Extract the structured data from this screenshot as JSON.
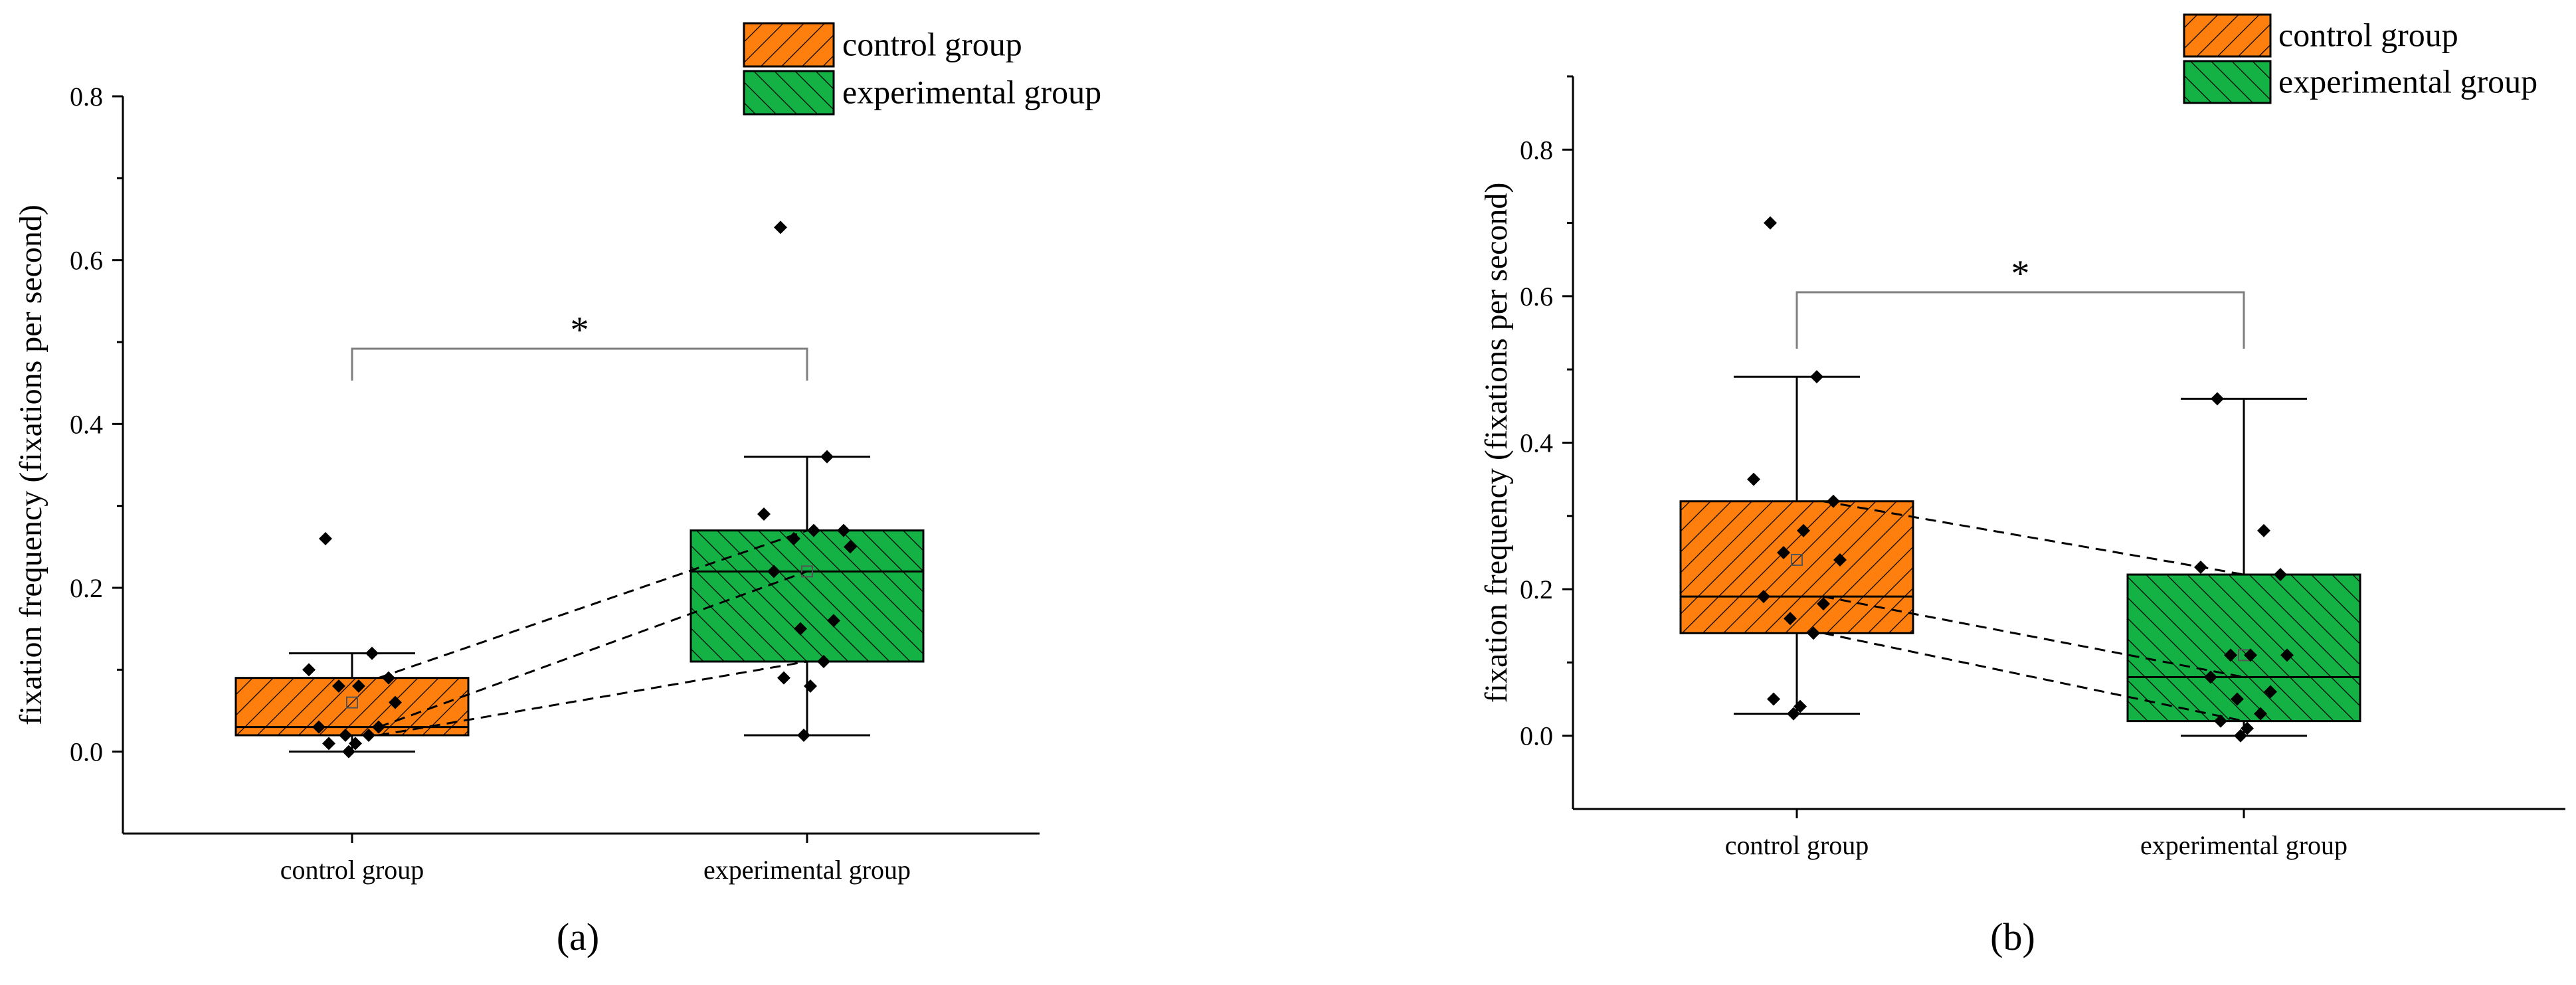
{
  "colors": {
    "control": "#ff7f0e",
    "experimental": "#14b245",
    "axis": "#000000",
    "bracket": "#7f7f7f"
  },
  "chart_data": [
    {
      "type": "box",
      "panel_label": "(a)",
      "ylabel": "fixation frequency (fixations per second)",
      "ylim": [
        -0.1,
        0.8
      ],
      "yticks": [
        "0.0",
        "0.2",
        "0.4",
        "0.6",
        "0.8"
      ],
      "categories": [
        "control group",
        "experimental group"
      ],
      "legend": [
        "control group",
        "experimental group"
      ],
      "significance": "*",
      "boxes": [
        {
          "name": "control group",
          "whisker_low": 0.0,
          "q1": 0.02,
          "median": 0.03,
          "q3": 0.09,
          "whisker_high": 0.12,
          "mean": 0.06,
          "points": [
            0.26,
            0.12,
            0.1,
            0.09,
            0.08,
            0.08,
            0.06,
            0.03,
            0.03,
            0.02,
            0.02,
            0.01,
            0.01,
            0.0
          ]
        },
        {
          "name": "experimental group",
          "whisker_low": 0.02,
          "q1": 0.11,
          "median": 0.22,
          "q3": 0.27,
          "whisker_high": 0.36,
          "mean": 0.22,
          "points": [
            0.64,
            0.36,
            0.29,
            0.27,
            0.27,
            0.26,
            0.25,
            0.22,
            0.16,
            0.15,
            0.11,
            0.09,
            0.08,
            0.02
          ]
        }
      ],
      "paired_lines": [
        [
          0.09,
          0.27
        ],
        [
          0.03,
          0.22
        ],
        [
          0.02,
          0.11
        ]
      ]
    },
    {
      "type": "box",
      "panel_label": "(b)",
      "ylabel": "fixation frequency (fixations per second)",
      "ylim": [
        -0.1,
        0.9
      ],
      "yticks": [
        "0.0",
        "0.2",
        "0.4",
        "0.6",
        "0.8"
      ],
      "categories": [
        "control group",
        "experimental group"
      ],
      "legend": [
        "control group",
        "experimental group"
      ],
      "significance": "*",
      "boxes": [
        {
          "name": "control group",
          "whisker_low": 0.03,
          "q1": 0.14,
          "median": 0.19,
          "q3": 0.32,
          "whisker_high": 0.49,
          "mean": 0.24,
          "points": [
            0.7,
            0.49,
            0.35,
            0.32,
            0.28,
            0.25,
            0.24,
            0.19,
            0.18,
            0.16,
            0.14,
            0.05,
            0.04,
            0.03
          ]
        },
        {
          "name": "experimental group",
          "whisker_low": 0.0,
          "q1": 0.02,
          "median": 0.08,
          "q3": 0.22,
          "whisker_high": 0.46,
          "mean": 0.11,
          "points": [
            0.46,
            0.28,
            0.23,
            0.22,
            0.11,
            0.11,
            0.11,
            0.08,
            0.06,
            0.05,
            0.03,
            0.02,
            0.01,
            0.0
          ]
        }
      ],
      "paired_lines": [
        [
          0.32,
          0.22
        ],
        [
          0.19,
          0.08
        ],
        [
          0.14,
          0.02
        ]
      ]
    }
  ]
}
